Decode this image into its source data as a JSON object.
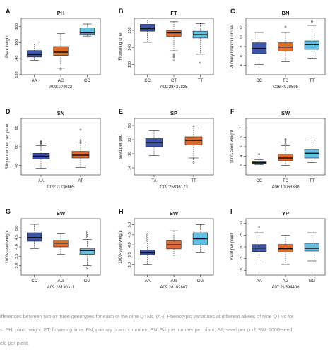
{
  "chart_data": [
    {
      "panel": "A",
      "title": "PH",
      "type": "boxplot",
      "xlabel": "A09:104022",
      "ylabel": "Plant height",
      "ylim": [
        120,
        190
      ],
      "yticks": [
        "120",
        "140",
        "160",
        "180"
      ],
      "categories": [
        "AA",
        "AC",
        "CC"
      ],
      "boxes": [
        {
          "min": 138,
          "q1": 142,
          "median": 145,
          "q3": 150,
          "max": 158,
          "outliers": []
        },
        {
          "min": 128,
          "q1": 144,
          "median": 148,
          "q3": 155,
          "max": 171,
          "outliers": [
            127
          ]
        },
        {
          "min": 168,
          "q1": 170,
          "median": 172,
          "q3": 178,
          "max": 183,
          "outliers": []
        }
      ]
    },
    {
      "panel": "B",
      "title": "FT",
      "type": "boxplot",
      "xlabel": "A09:28437825",
      "ylabel": "Flowering time",
      "ylim": [
        124,
        157
      ],
      "yticks": [
        "130",
        "140",
        "150"
      ],
      "categories": [
        "CC",
        "CT",
        "TT"
      ],
      "boxes": [
        {
          "min": 143,
          "q1": 149.5,
          "median": 151,
          "q3": 153.5,
          "max": 156,
          "outliers": []
        },
        {
          "min": 138,
          "q1": 146.5,
          "median": 148.5,
          "q3": 150,
          "max": 155,
          "outliers": [
            136,
            135,
            134.5,
            133
          ]
        },
        {
          "min": 136,
          "q1": 145.5,
          "median": 147.5,
          "q3": 149.5,
          "max": 154,
          "outliers": [
            131
          ]
        }
      ]
    },
    {
      "panel": "C",
      "title": "BN",
      "type": "boxplot",
      "xlabel": "C06:4978698",
      "ylabel": "Primary branch number",
      "ylim": [
        2,
        14
      ],
      "yticks": [
        "4",
        "6",
        "8",
        "10",
        "12"
      ],
      "categories": [
        "CC",
        "TC",
        "TT"
      ],
      "boxes": [
        {
          "min": 4.2,
          "q1": 6.5,
          "median": 7.6,
          "q3": 8.8,
          "max": 11.0,
          "outliers": []
        },
        {
          "min": 4.8,
          "q1": 7.0,
          "median": 7.9,
          "q3": 8.8,
          "max": 11.0,
          "outliers": [
            12.2
          ]
        },
        {
          "min": 5.5,
          "q1": 7.4,
          "median": 8.4,
          "q3": 9.2,
          "max": 12.5,
          "outliers": [
            13.2,
            13.5
          ]
        }
      ]
    },
    {
      "panel": "D",
      "title": "SN",
      "type": "boxplot",
      "xlabel": "C09:11236665",
      "ylabel": "Silique number per plant",
      "ylim": [
        30,
        90
      ],
      "yticks": [
        "40",
        "60",
        "80"
      ],
      "categories": [
        "AA",
        "AT"
      ],
      "boxes": [
        {
          "min": 37,
          "q1": 47,
          "median": 50,
          "q3": 53,
          "max": 61,
          "outliers": [
            63,
            64,
            65,
            66
          ]
        },
        {
          "min": 38,
          "q1": 48,
          "median": 51,
          "q3": 55,
          "max": 62,
          "outliers": [
            64,
            65,
            67,
            78
          ]
        }
      ]
    },
    {
      "panel": "E",
      "title": "SP",
      "type": "boxplot",
      "xlabel": "C09:25836173",
      "ylabel": "seed per pod",
      "ylim": [
        12,
        28
      ],
      "yticks": [
        "14",
        "18",
        "22",
        "26"
      ],
      "categories": [
        "TA",
        "TT"
      ],
      "boxes": [
        {
          "min": 17.5,
          "q1": 20.0,
          "median": 21.2,
          "q3": 22.3,
          "max": 24.5,
          "outliers": []
        },
        {
          "min": 16.8,
          "q1": 20.5,
          "median": 21.8,
          "q3": 22.8,
          "max": 25.3,
          "outliers": [
            25.8,
            16.5,
            15.5
          ]
        }
      ]
    },
    {
      "panel": "F",
      "title": "SW",
      "type": "boxplot",
      "xlabel": "A06:10063330",
      "ylabel": "1000-seed weight",
      "ylim": [
        2.0,
        8.0
      ],
      "yticks": [
        "3",
        "4",
        "5",
        "6",
        "7"
      ],
      "categories": [
        "CC",
        "TC",
        "TT"
      ],
      "boxes": [
        {
          "min": 3.1,
          "q1": 3.2,
          "median": 3.3,
          "q3": 3.45,
          "max": 3.6,
          "outliers": [
            4.2
          ]
        },
        {
          "min": 3.0,
          "q1": 3.5,
          "median": 3.8,
          "q3": 4.2,
          "max": 5.1,
          "outliers": [
            5.3,
            5.5,
            5.7,
            5.8
          ]
        },
        {
          "min": 3.3,
          "q1": 3.8,
          "median": 4.3,
          "q3": 4.7,
          "max": 5.7,
          "outliers": []
        }
      ]
    },
    {
      "panel": "G",
      "title": "SW",
      "type": "boxplot",
      "xlabel": "A09:28130311",
      "ylabel": "1000-seed weight",
      "ylim": [
        2.5,
        5.5
      ],
      "yticks": [
        "3.0",
        "3.5",
        "4.0",
        "4.5",
        "5.0"
      ],
      "categories": [
        "CC",
        "AG",
        "GG"
      ],
      "boxes": [
        {
          "min": 3.9,
          "q1": 4.3,
          "median": 4.5,
          "q3": 4.75,
          "max": 5.2,
          "outliers": []
        },
        {
          "min": 3.6,
          "q1": 4.0,
          "median": 4.2,
          "q3": 4.35,
          "max": 4.7,
          "outliers": []
        },
        {
          "min": 3.0,
          "q1": 3.6,
          "median": 3.8,
          "q3": 3.9,
          "max": 4.4,
          "outliers": [
            4.5,
            4.6,
            4.7,
            4.8,
            2.9
          ]
        }
      ]
    },
    {
      "panel": "H",
      "title": "SW",
      "type": "boxplot",
      "xlabel": "A09:28182807",
      "ylabel": "1000-seed weight",
      "ylim": [
        2.5,
        5.3
      ],
      "yticks": [
        "3.0",
        "3.5",
        "4.0",
        "4.5",
        "5.0"
      ],
      "categories": [
        "AA",
        "AG",
        "GG"
      ],
      "boxes": [
        {
          "min": 3.0,
          "q1": 3.5,
          "median": 3.6,
          "q3": 3.75,
          "max": 4.1,
          "outliers": [
            4.2,
            4.3,
            4.4,
            4.5
          ]
        },
        {
          "min": 3.4,
          "q1": 3.8,
          "median": 4.0,
          "q3": 4.2,
          "max": 4.7,
          "outliers": []
        },
        {
          "min": 3.6,
          "q1": 4.0,
          "median": 4.3,
          "q3": 4.6,
          "max": 5.0,
          "outliers": []
        }
      ]
    },
    {
      "panel": "I",
      "title": "YP",
      "type": "boxplot",
      "xlabel": "A07:21594406",
      "ylabel": "Yield per plant",
      "ylim": [
        8,
        32
      ],
      "yticks": [
        "10",
        "15",
        "20",
        "25",
        "30"
      ],
      "categories": [
        "AA",
        "AG",
        "GG"
      ],
      "boxes": [
        {
          "min": 13.5,
          "q1": 18.0,
          "median": 19.5,
          "q3": 21.0,
          "max": 26.0,
          "outliers": [
            28.5
          ]
        },
        {
          "min": 12.5,
          "q1": 17.8,
          "median": 19.2,
          "q3": 21.0,
          "max": 25.0,
          "outliers": []
        },
        {
          "min": 14.0,
          "q1": 18.2,
          "median": 19.4,
          "q3": 21.5,
          "max": 26.0,
          "outliers": []
        }
      ]
    }
  ],
  "colors": {
    "blue": "#3d55a8",
    "orange": "#e06a2a",
    "lightblue": "#62c0e4",
    "outline": "#1a1a1a",
    "caption": "#9a9a9a"
  },
  "palettes": {
    "A": [
      "blue",
      "orange",
      "lightblue"
    ],
    "B": [
      "blue",
      "orange",
      "lightblue"
    ],
    "C": [
      "blue",
      "orange",
      "lightblue"
    ],
    "D": [
      "blue",
      "orange"
    ],
    "E": [
      "blue",
      "orange"
    ],
    "F": [
      "blue",
      "orange",
      "lightblue"
    ],
    "G": [
      "blue",
      "orange",
      "lightblue"
    ],
    "H": [
      "blue",
      "orange",
      "lightblue"
    ],
    "I": [
      "blue",
      "orange",
      "lightblue"
    ]
  },
  "caption": {
    "line1": "ifferences between two or three genotypes for each of the nine QTNs. (A-I) Phenotypic variations at different alleles of nine QTNs for",
    "line2": "s. PH, plant height; FT, flowering time; BN, primary branch number; SN, Silique number per plant; SP, seed per pod; SW, 1000-seed",
    "line3": "eld per plant."
  }
}
